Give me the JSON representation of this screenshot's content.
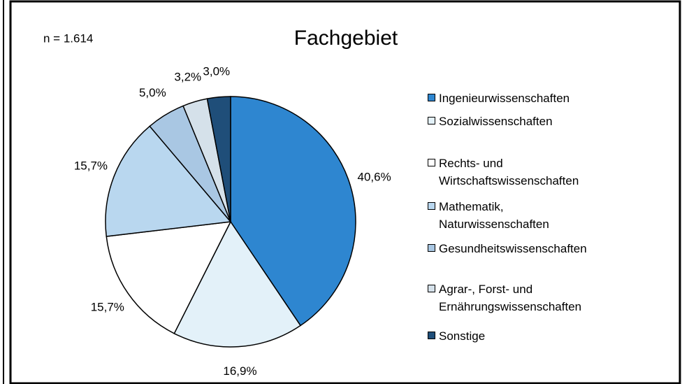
{
  "chart_data": {
    "type": "pie",
    "title": "Fachgebiet",
    "annotation": "n = 1.614",
    "categories": [
      "Ingenieurwissenschaften",
      "Sozialwissenschaften",
      "Rechts- und Wirtschaftswissenschaften",
      "Mathematik, Naturwissenschaften",
      "Gesundheitswissenschaften",
      "Agrar-, Forst- und Ernährungswissenschaften",
      "Sonstige"
    ],
    "values": [
      40.6,
      16.9,
      15.7,
      15.7,
      5.0,
      3.2,
      3.0
    ],
    "value_labels": [
      "40,6%",
      "16,9%",
      "15,7%",
      "15,7%",
      "5,0%",
      "3,2%",
      "3,0%"
    ],
    "colors": [
      "#2e86d0",
      "#e3f1f9",
      "#ffffff",
      "#b9d7ef",
      "#a9c7e3",
      "#d5e1ea",
      "#1f4e79"
    ],
    "legend": "right"
  }
}
